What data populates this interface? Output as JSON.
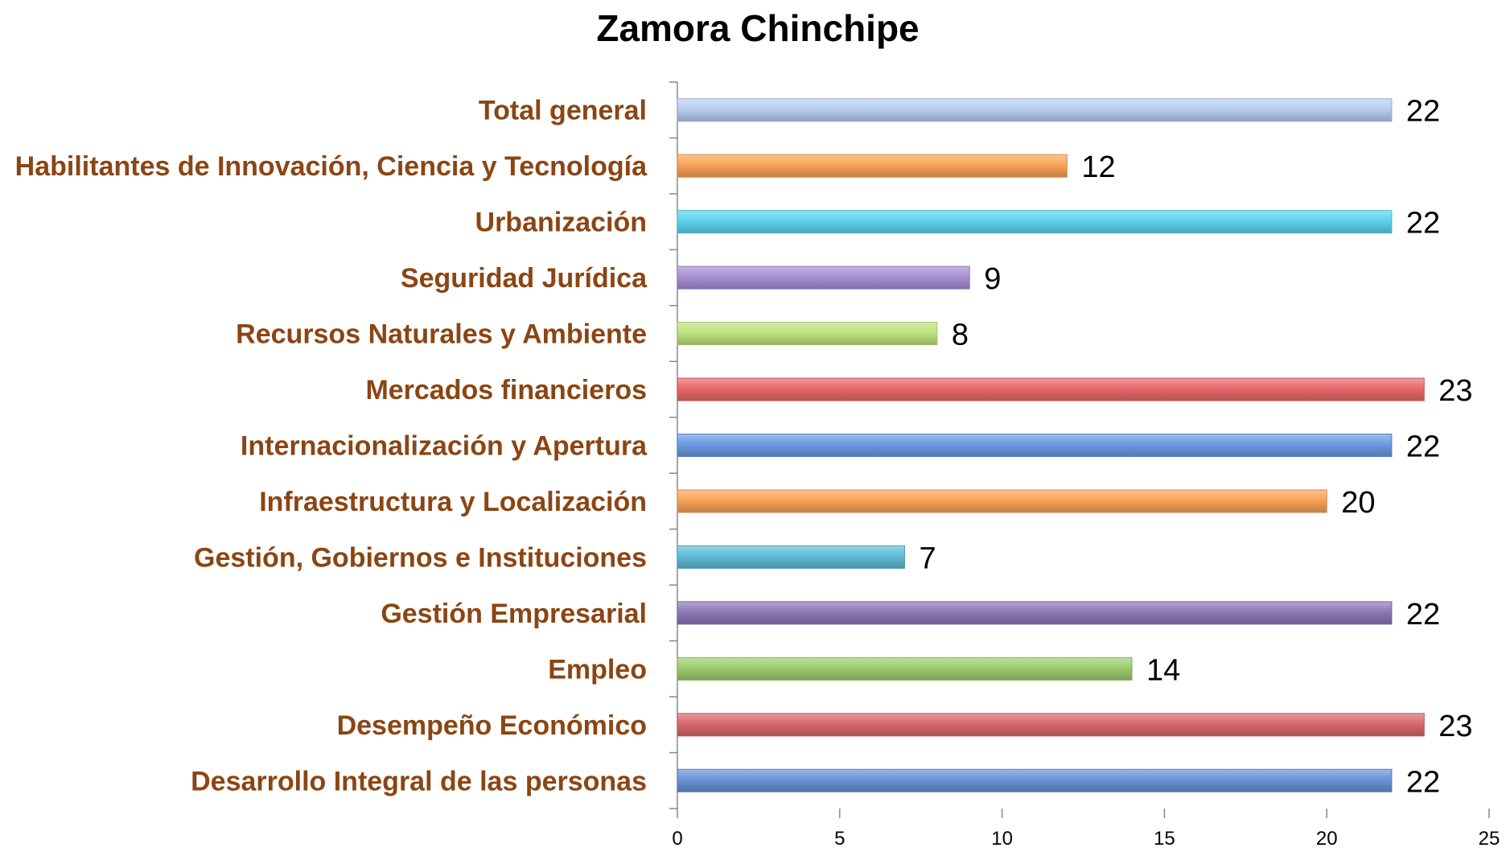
{
  "chart_data": {
    "type": "bar",
    "orientation": "horizontal",
    "title": "Zamora Chinchipe",
    "xlabel": "",
    "ylabel": "",
    "xlim": [
      0,
      25
    ],
    "x_ticks": [
      "0",
      "5",
      "10",
      "15",
      "20",
      "25"
    ],
    "grid": false,
    "legend": "none",
    "category_label_color": "#8B4513",
    "categories": [
      "Total general",
      "Habilitantes de Innovación, Ciencia y Tecnología",
      "Urbanización",
      "Seguridad Jurídica",
      "Recursos Naturales y Ambiente",
      "Mercados financieros",
      "Internacionalización y Apertura",
      "Infraestructura y Localización",
      "Gestión, Gobiernos e Instituciones",
      "Gestión Empresarial",
      "Empleo",
      "Desempeño Económico",
      "Desarrollo Integral de las personas"
    ],
    "values": [
      22,
      12,
      22,
      9,
      8,
      23,
      22,
      20,
      7,
      22,
      14,
      23,
      22
    ],
    "data_labels": [
      "22",
      "12",
      "22",
      "9",
      "8",
      "23",
      "22",
      "20",
      "7",
      "22",
      "14",
      "23",
      "22"
    ],
    "bar_colors": [
      "#b9cdf2",
      "#f9a357",
      "#5cd3ee",
      "#a78fd6",
      "#bfe37e",
      "#e8696a",
      "#6a9ae2",
      "#f9a357",
      "#5fbbd8",
      "#8d77b8",
      "#9dcc6e",
      "#d9686b",
      "#6a92d6"
    ]
  }
}
